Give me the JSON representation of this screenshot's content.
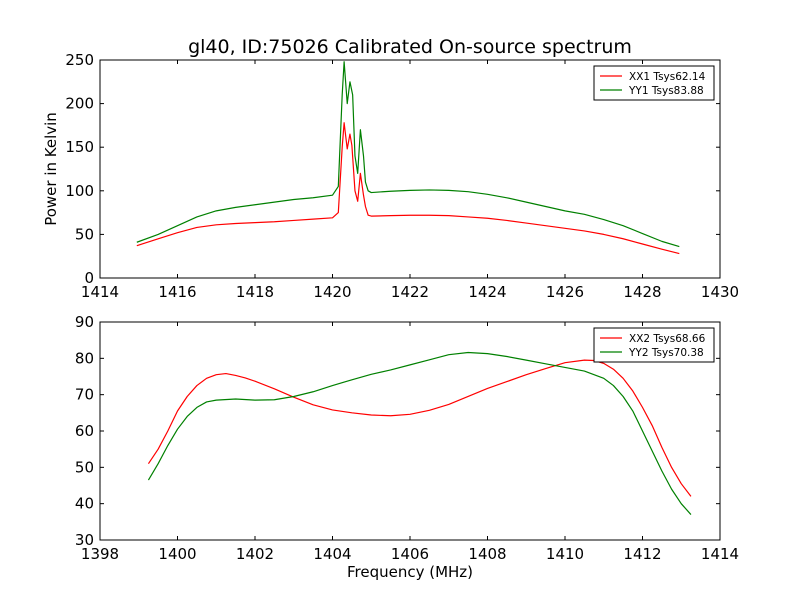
{
  "title": "gl40, ID:75026 Calibrated On-source spectrum",
  "colors": {
    "xx": "#ff0000",
    "yy": "#008000"
  },
  "chart_data": [
    {
      "type": "line",
      "title": "gl40, ID:75026 Calibrated On-source spectrum",
      "xlabel": "",
      "ylabel": "Power in Kelvin",
      "xlim": [
        1414,
        1430
      ],
      "ylim": [
        0,
        250
      ],
      "xticks": [
        1414,
        1416,
        1418,
        1420,
        1422,
        1424,
        1426,
        1428,
        1430
      ],
      "yticks": [
        0,
        50,
        100,
        150,
        200,
        250
      ],
      "grid": false,
      "legend_position": "top-right",
      "series": [
        {
          "name": "XX1 Tsys62.14",
          "color": "#ff0000",
          "x": [
            1414.95,
            1415.5,
            1416.0,
            1416.5,
            1417.0,
            1417.5,
            1418.0,
            1418.5,
            1419.0,
            1419.5,
            1420.0,
            1420.15,
            1420.25,
            1420.3,
            1420.38,
            1420.45,
            1420.5,
            1420.58,
            1420.65,
            1420.72,
            1420.8,
            1420.85,
            1420.92,
            1421.0,
            1421.5,
            1422.0,
            1422.5,
            1423.0,
            1423.5,
            1424.0,
            1424.5,
            1425.0,
            1425.5,
            1426.0,
            1426.5,
            1427.0,
            1427.5,
            1428.0,
            1428.5,
            1428.95
          ],
          "y": [
            37,
            45,
            52,
            58,
            61,
            62.5,
            63.5,
            64.5,
            66,
            67.5,
            69,
            75,
            150,
            178,
            148,
            165,
            152,
            100,
            88,
            120,
            95,
            82,
            72,
            71,
            71.5,
            72,
            72,
            71.5,
            70,
            68.5,
            66,
            63,
            60,
            57,
            54,
            50,
            45,
            39,
            33,
            28
          ]
        },
        {
          "name": "YY1 Tsys83.88",
          "color": "#008000",
          "x": [
            1414.95,
            1415.5,
            1416.0,
            1416.5,
            1417.0,
            1417.5,
            1418.0,
            1418.5,
            1419.0,
            1419.5,
            1420.0,
            1420.15,
            1420.25,
            1420.3,
            1420.38,
            1420.45,
            1420.52,
            1420.58,
            1420.65,
            1420.72,
            1420.8,
            1420.85,
            1420.92,
            1421.0,
            1421.5,
            1422.0,
            1422.5,
            1423.0,
            1423.5,
            1424.0,
            1424.5,
            1425.0,
            1425.5,
            1426.0,
            1426.5,
            1427.0,
            1427.5,
            1428.0,
            1428.5,
            1428.95
          ],
          "y": [
            41,
            50,
            60,
            70,
            77,
            81,
            84,
            87,
            90,
            92,
            95,
            105,
            210,
            248,
            200,
            225,
            210,
            140,
            120,
            170,
            140,
            110,
            100,
            98,
            99.5,
            100.5,
            101,
            100.5,
            99,
            96,
            92,
            87,
            82,
            77,
            73,
            67,
            60,
            51,
            42,
            36
          ]
        }
      ]
    },
    {
      "type": "line",
      "title": "",
      "xlabel": "Frequency (MHz)",
      "ylabel": "",
      "xlim": [
        1398,
        1414
      ],
      "ylim": [
        30,
        90
      ],
      "xticks": [
        1398,
        1400,
        1402,
        1404,
        1406,
        1408,
        1410,
        1412,
        1414
      ],
      "yticks": [
        30,
        40,
        50,
        60,
        70,
        80,
        90
      ],
      "grid": false,
      "legend_position": "top-right",
      "series": [
        {
          "name": "XX2 Tsys68.66",
          "color": "#ff0000",
          "x": [
            1399.25,
            1399.5,
            1399.75,
            1400.0,
            1400.25,
            1400.5,
            1400.75,
            1401.0,
            1401.25,
            1401.5,
            1401.75,
            1402.0,
            1402.5,
            1403.0,
            1403.5,
            1404.0,
            1404.5,
            1405.0,
            1405.5,
            1406.0,
            1406.5,
            1407.0,
            1407.5,
            1408.0,
            1408.5,
            1409.0,
            1409.5,
            1410.0,
            1410.5,
            1410.75,
            1411.0,
            1411.25,
            1411.5,
            1411.75,
            1412.0,
            1412.25,
            1412.5,
            1412.75,
            1413.0,
            1413.25
          ],
          "y": [
            51,
            55,
            60,
            65.5,
            69.5,
            72.5,
            74.5,
            75.5,
            75.8,
            75.3,
            74.6,
            73.7,
            71.6,
            69.3,
            67.2,
            65.8,
            65,
            64.4,
            64.2,
            64.6,
            65.7,
            67.3,
            69.5,
            71.7,
            73.6,
            75.5,
            77.2,
            78.8,
            79.5,
            79.4,
            78.6,
            77,
            74.5,
            71,
            66.5,
            61.5,
            55.5,
            50,
            45.5,
            42
          ]
        },
        {
          "name": "YY2 Tsys70.38",
          "color": "#008000",
          "x": [
            1399.25,
            1399.5,
            1399.75,
            1400.0,
            1400.25,
            1400.5,
            1400.75,
            1401.0,
            1401.5,
            1402.0,
            1402.5,
            1403.0,
            1403.5,
            1404.0,
            1404.5,
            1405.0,
            1405.5,
            1406.0,
            1406.5,
            1407.0,
            1407.5,
            1408.0,
            1408.5,
            1409.0,
            1409.5,
            1410.0,
            1410.5,
            1411.0,
            1411.25,
            1411.5,
            1411.75,
            1412.0,
            1412.25,
            1412.5,
            1412.75,
            1413.0,
            1413.25
          ],
          "y": [
            46.5,
            51,
            56,
            60.5,
            64,
            66.5,
            68,
            68.5,
            68.8,
            68.5,
            68.6,
            69.5,
            70.8,
            72.5,
            74.1,
            75.6,
            76.8,
            78.2,
            79.6,
            81,
            81.6,
            81.3,
            80.5,
            79.5,
            78.5,
            77.5,
            76.5,
            74.5,
            72.5,
            69.5,
            65.5,
            60,
            54.5,
            49,
            44,
            40,
            37
          ]
        }
      ]
    }
  ]
}
